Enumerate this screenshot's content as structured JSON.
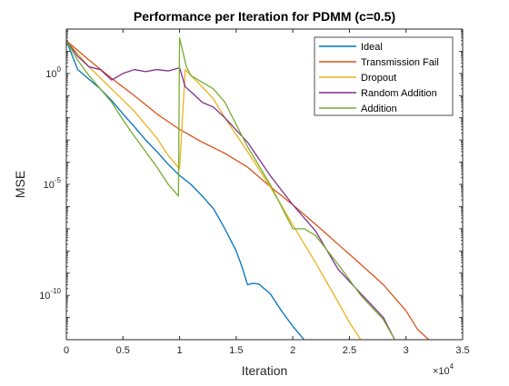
{
  "chart_data": {
    "type": "line",
    "title": "Performance per Iteration for PDMM (c=0.5)",
    "xlabel": "Iteration",
    "ylabel": "MSE",
    "x_multiplier_label": "×10",
    "x_multiplier_exponent": "4",
    "xlim": [
      0,
      35000
    ],
    "ylim": [
      1e-12,
      100.0
    ],
    "yscale": "log",
    "x_ticks": [
      0,
      5000,
      10000,
      15000,
      20000,
      25000,
      30000,
      35000
    ],
    "x_tick_labels": [
      "0",
      "0.5",
      "1",
      "1.5",
      "2",
      "2.5",
      "3",
      "3.5"
    ],
    "y_ticks": [
      1,
      1e-05,
      1e-10
    ],
    "y_tick_labels": [
      {
        "base": "10",
        "exp": "0"
      },
      {
        "base": "10",
        "exp": "-5"
      },
      {
        "base": "10",
        "exp": "-10"
      }
    ],
    "grid": false,
    "legend_position": "top-right",
    "series": [
      {
        "name": "Ideal",
        "color": "#0072BD",
        "x": [
          0,
          1000,
          2000,
          3000,
          4000,
          5000,
          6000,
          7000,
          8000,
          9000,
          10000,
          11000,
          12000,
          13000,
          14000,
          15000,
          15500,
          16000,
          16500,
          17000,
          18000,
          19000,
          20000,
          21000
        ],
        "y": [
          30,
          1.5,
          0.55,
          0.2,
          0.06,
          0.015,
          0.004,
          0.001,
          0.0003,
          8e-05,
          2.5e-05,
          1e-05,
          3e-06,
          8e-07,
          1e-07,
          1e-08,
          2e-09,
          3e-10,
          3.5e-10,
          3.2e-10,
          1.2e-10,
          2e-11,
          4e-12,
          1e-12
        ]
      },
      {
        "name": "Transmission Fail",
        "color": "#D95319",
        "x": [
          0,
          2000,
          4000,
          6000,
          8000,
          10000,
          12000,
          14000,
          16000,
          18000,
          20000,
          22000,
          24000,
          26000,
          28000,
          30000,
          31000,
          32000
        ],
        "y": [
          30,
          4,
          0.6,
          0.1,
          0.015,
          0.003,
          0.0008,
          0.00025,
          6e-05,
          8e-06,
          1.2e-06,
          1.6e-07,
          2e-08,
          2.5e-09,
          3e-10,
          2e-11,
          3e-12,
          1e-12
        ]
      },
      {
        "name": "Dropout",
        "color": "#EDB120",
        "x": [
          0,
          2000,
          4000,
          6000,
          8000,
          9000,
          10000,
          10500,
          11000,
          12000,
          13000,
          14000,
          16000,
          18000,
          20000,
          22000,
          24000,
          25000,
          26000
        ],
        "y": [
          30,
          2,
          0.2,
          0.02,
          0.0012,
          0.0002,
          5e-05,
          1.5,
          0.8,
          0.25,
          0.07,
          0.01,
          0.0003,
          8e-06,
          1.5e-07,
          3e-09,
          5e-11,
          6e-12,
          1e-12
        ]
      },
      {
        "name": "Random Addition",
        "color": "#7E2F8E",
        "x": [
          0,
          1000,
          2000,
          3000,
          4000,
          5000,
          6000,
          7000,
          8000,
          9000,
          10000,
          10500,
          11000,
          12000,
          13000,
          14000,
          16000,
          18000,
          20000,
          22000,
          24000,
          26000,
          28000,
          29000
        ],
        "y": [
          30,
          6,
          2,
          1.5,
          0.5,
          1,
          1.5,
          1.2,
          1.5,
          1.3,
          1.8,
          0.25,
          0.15,
          0.05,
          0.03,
          0.01,
          0.0008,
          2.5e-05,
          1.2e-06,
          8e-08,
          1.5e-09,
          1.2e-10,
          1e-11,
          1e-12
        ]
      },
      {
        "name": "Addition",
        "color": "#77AC30",
        "x": [
          0,
          1000,
          2000,
          3000,
          4000,
          5000,
          6000,
          7000,
          8000,
          9000,
          9900,
          10000,
          10600,
          11000,
          12000,
          13000,
          14000,
          16000,
          18000,
          20000,
          21000,
          22000,
          24000,
          26000,
          28000,
          29000
        ],
        "y": [
          30,
          4,
          0.8,
          0.2,
          0.05,
          0.008,
          0.0015,
          0.0003,
          6e-05,
          1e-05,
          3e-06,
          40,
          2,
          0.8,
          0.4,
          0.2,
          0.05,
          0.0005,
          1e-05,
          1e-07,
          1e-07,
          5e-08,
          2.5e-09,
          1e-10,
          8e-12,
          1e-12
        ]
      }
    ]
  }
}
